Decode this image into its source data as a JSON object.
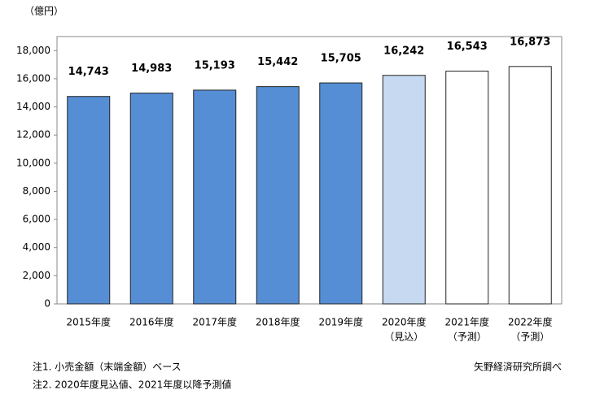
{
  "chart_data": {
    "type": "bar",
    "unit_label": "（億円）",
    "categories": [
      [
        "2015年度"
      ],
      [
        "2016年度"
      ],
      [
        "2017年度"
      ],
      [
        "2018年度"
      ],
      [
        "2019年度"
      ],
      [
        "2020年度",
        "（見込）"
      ],
      [
        "2021年度",
        "（予測）"
      ],
      [
        "2022年度",
        "（予測）"
      ]
    ],
    "values": [
      14743,
      14983,
      15193,
      15442,
      15705,
      16242,
      16543,
      16873
    ],
    "value_labels": [
      "14,743",
      "14,983",
      "15,193",
      "15,442",
      "15,705",
      "16,242",
      "16,543",
      "16,873"
    ],
    "colors": [
      "#558ed5",
      "#558ed5",
      "#558ed5",
      "#558ed5",
      "#558ed5",
      "#c6d9f1",
      "#ffffff",
      "#ffffff"
    ],
    "ylim": [
      0,
      19000
    ],
    "yticks": [
      0,
      {
        "value": 2000,
        "label": "2,000"
      },
      {
        "value": 4000,
        "label": "4,000"
      },
      {
        "value": 6000,
        "label": "6,000"
      },
      {
        "value": 8000,
        "label": "8,000"
      },
      {
        "value": 10000,
        "label": "10,000"
      },
      {
        "value": 12000,
        "label": "12,000"
      },
      {
        "value": 14000,
        "label": "14,000"
      },
      {
        "value": 16000,
        "label": "16,000"
      },
      {
        "value": 18000,
        "label": "18,000"
      }
    ],
    "grid": false,
    "notes": [
      "注1. 小売金額（末端金額）ベース",
      "注2. 2020年度見込値、2021年度以降予測値"
    ],
    "source": "矢野経済研究所調べ"
  }
}
